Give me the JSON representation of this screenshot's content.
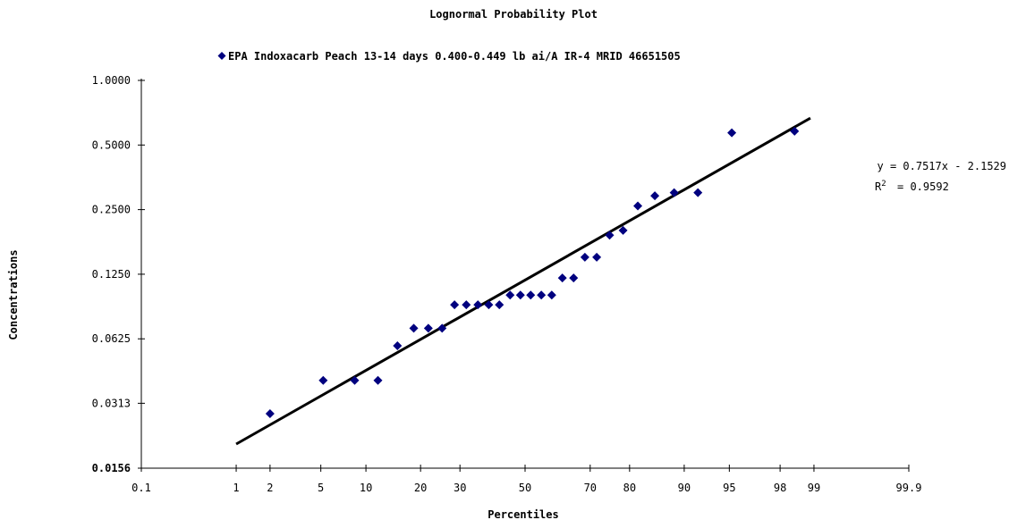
{
  "chart_data": {
    "type": "scatter",
    "title": "Lognormal Probability Plot",
    "xlabel": "Percentiles",
    "ylabel": "Concentrations",
    "x_scale": "probability",
    "y_scale": "log2",
    "xlim": [
      0.1,
      99.9
    ],
    "ylim": [
      0.0156,
      1.0
    ],
    "x_ticks": [
      "0.1",
      "1",
      "2",
      "5",
      "10",
      "20",
      "30",
      "50",
      "70",
      "80",
      "90",
      "95",
      "98",
      "99",
      "99.9"
    ],
    "y_ticks": [
      "0.0156",
      "0.0313",
      "0.0625",
      "0.1250",
      "0.2500",
      "0.5000",
      "1.0000"
    ],
    "grid": false,
    "legend_position": "top",
    "series": [
      {
        "name": "EPA Indoxacarb Peach 13-14 days 0.400-0.449 lb ai/A IR-4 MRID 46651505",
        "color": "#00007f",
        "marker": "diamond",
        "x": [
          2.0,
          5.2,
          8.5,
          11.8,
          15.2,
          18.5,
          21.8,
          25.2,
          28.5,
          31.8,
          35.2,
          38.5,
          41.8,
          45.2,
          48.5,
          51.8,
          55.2,
          58.5,
          61.8,
          65.2,
          68.5,
          71.8,
          75.2,
          78.5,
          81.8,
          85.2,
          88.5,
          91.8,
          95.2,
          98.5
        ],
        "y": [
          0.028,
          0.04,
          0.04,
          0.04,
          0.058,
          0.07,
          0.07,
          0.07,
          0.09,
          0.09,
          0.09,
          0.09,
          0.09,
          0.1,
          0.1,
          0.1,
          0.1,
          0.1,
          0.12,
          0.12,
          0.15,
          0.15,
          0.19,
          0.2,
          0.26,
          0.29,
          0.3,
          0.3,
          0.57,
          0.58
        ]
      }
    ],
    "trendline": {
      "equation": "y = 0.7517x - 2.1529",
      "r2_text": "= 0.9592",
      "slope": 0.7517,
      "intercept": -2.1529,
      "x_range": [
        1.0,
        99.0
      ],
      "color": "#000000"
    }
  }
}
